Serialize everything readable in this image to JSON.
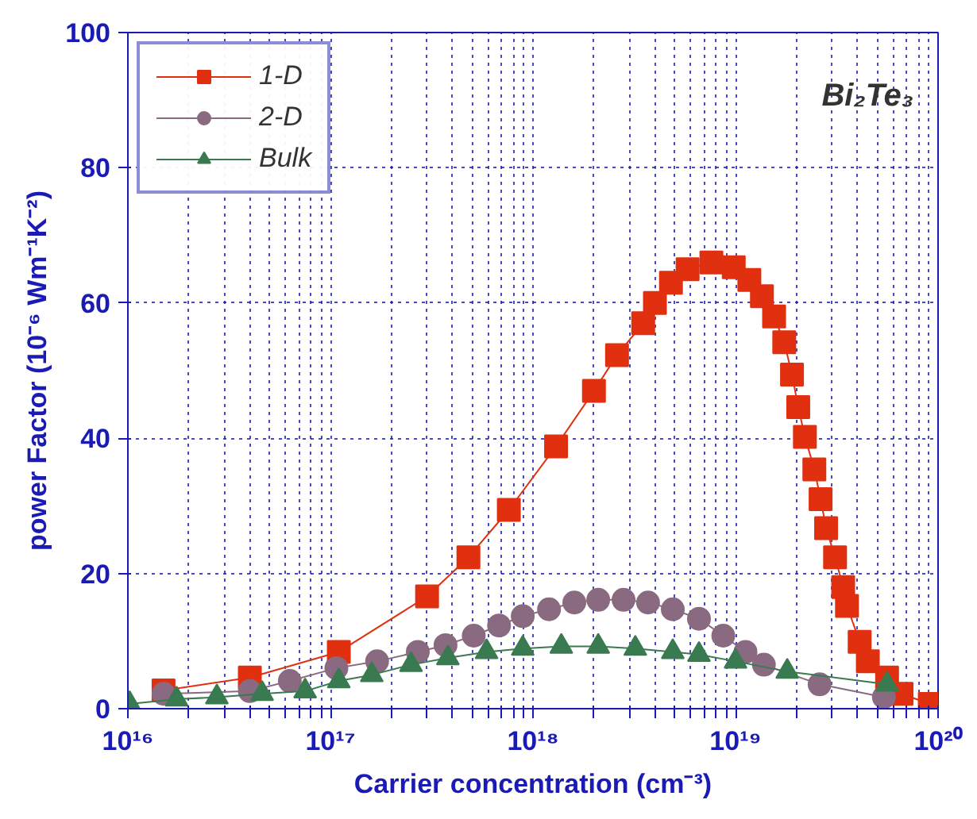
{
  "chart_data": {
    "type": "line",
    "xlabel": "Carrier concentration (cm⁻³)",
    "ylabel": "power Factor (10⁻⁶ Wm⁻¹K⁻²)",
    "annotations": [
      "Bi₂Te₃"
    ],
    "log": "x",
    "grid": true,
    "legend": "top left",
    "line_style": "solid",
    "xlim": [
      1e+16,
      1e+20
    ],
    "ylim": [
      0,
      100
    ],
    "xticks": [
      {
        "value": 1e+16,
        "label": "10¹⁶"
      },
      {
        "value": 2e+16,
        "label": null
      },
      {
        "value": 3e+16,
        "label": null
      },
      {
        "value": 4e+16,
        "label": null
      },
      {
        "value": 5e+16,
        "label": null
      },
      {
        "value": 6e+16,
        "label": null
      },
      {
        "value": 7e+16,
        "label": null
      },
      {
        "value": 8e+16,
        "label": null
      },
      {
        "value": 9e+16,
        "label": null
      },
      {
        "value": 1e+17,
        "label": "10¹⁷"
      },
      {
        "value": 2e+17,
        "label": null
      },
      {
        "value": 3e+17,
        "label": null
      },
      {
        "value": 4e+17,
        "label": null
      },
      {
        "value": 5e+17,
        "label": null
      },
      {
        "value": 6e+17,
        "label": null
      },
      {
        "value": 7e+17,
        "label": null
      },
      {
        "value": 8e+17,
        "label": null
      },
      {
        "value": 9e+17,
        "label": null
      },
      {
        "value": 1e+18,
        "label": "10¹⁸"
      },
      {
        "value": 2e+18,
        "label": null
      },
      {
        "value": 3e+18,
        "label": null
      },
      {
        "value": 4e+18,
        "label": null
      },
      {
        "value": 5e+18,
        "label": null
      },
      {
        "value": 6e+18,
        "label": null
      },
      {
        "value": 7e+18,
        "label": null
      },
      {
        "value": 8e+18,
        "label": null
      },
      {
        "value": 9e+18,
        "label": null
      },
      {
        "value": 1e+19,
        "label": "10¹⁹"
      },
      {
        "value": 2e+19,
        "label": null
      },
      {
        "value": 3e+19,
        "label": null
      },
      {
        "value": 4e+19,
        "label": null
      },
      {
        "value": 5e+19,
        "label": null
      },
      {
        "value": 6e+19,
        "label": null
      },
      {
        "value": 7e+19,
        "label": null
      },
      {
        "value": 8e+19,
        "label": null
      },
      {
        "value": 9e+19,
        "label": null
      },
      {
        "value": 1e+20,
        "label": "10²⁰"
      }
    ],
    "yticks": [
      0,
      20,
      40,
      60,
      80,
      100
    ],
    "series": [
      {
        "name": "1-D",
        "color": "#e03010",
        "marker": "square",
        "x": [
          1.5e+16,
          4e+16,
          1.1e+17,
          3e+17,
          4.8e+17,
          7.6e+17,
          1.3e+18,
          2e+18,
          2.6e+18,
          3.5e+18,
          4e+18,
          4.8e+18,
          5.8e+18,
          7.6e+18,
          9.8e+18,
          1.17e+19,
          1.35e+19,
          1.55e+19,
          1.74e+19,
          1.9e+19,
          2.04e+19,
          2.2e+19,
          2.45e+19,
          2.63e+19,
          2.8e+19,
          3.1e+19,
          3.4e+19,
          3.55e+19,
          4.1e+19,
          4.5e+19,
          5.6e+19,
          6.6e+19,
          9.1e+19
        ],
        "values": [
          2.7,
          4.6,
          8.4,
          16.6,
          22.4,
          29.4,
          38.8,
          47,
          52.3,
          57,
          60,
          63,
          65,
          66,
          65.3,
          63.4,
          61,
          58,
          54.2,
          49.4,
          44.6,
          40.2,
          35.4,
          31,
          26.7,
          22.4,
          18,
          15.2,
          9.9,
          7,
          4.6,
          2.2,
          0.7
        ]
      },
      {
        "name": "2-D",
        "color": "#8a6a80",
        "marker": "circle",
        "x": [
          1.5e+16,
          4e+16,
          6.3e+16,
          1.07e+17,
          1.7e+17,
          2.7e+17,
          3.7e+17,
          5.1e+17,
          6.8e+17,
          8.9e+17,
          1.2e+18,
          1.6e+18,
          2.1e+18,
          2.8e+18,
          3.7e+18,
          4.9e+18,
          6.6e+18,
          8.7e+18,
          1.12e+19,
          1.38e+19,
          2.6e+19,
          5.4e+19
        ],
        "values": [
          2.2,
          2.6,
          4.1,
          6,
          7,
          8.4,
          9.4,
          10.8,
          12.3,
          13.7,
          14.7,
          15.7,
          16.1,
          16.1,
          15.7,
          14.7,
          13.3,
          10.8,
          8.4,
          6.5,
          3.6,
          1.7
        ]
      },
      {
        "name": "Bulk",
        "color": "#3a7a50",
        "marker": "triangle",
        "x": [
          1.02e+16,
          1.74e+16,
          2.75e+16,
          4.6e+16,
          7.5e+16,
          1.1e+17,
          1.6e+17,
          2.5e+17,
          3.8e+17,
          5.9e+17,
          8.9e+17,
          1.38e+18,
          2.1e+18,
          3.2e+18,
          4.9e+18,
          6.6e+18,
          1e+19,
          1.8e+19,
          5.6e+19
        ],
        "values": [
          0.7,
          1.4,
          1.7,
          2.2,
          2.6,
          4.1,
          5,
          6.5,
          7.5,
          8.4,
          8.9,
          9.2,
          9.2,
          8.9,
          8.4,
          8,
          7,
          5.5,
          3.6
        ]
      }
    ]
  }
}
